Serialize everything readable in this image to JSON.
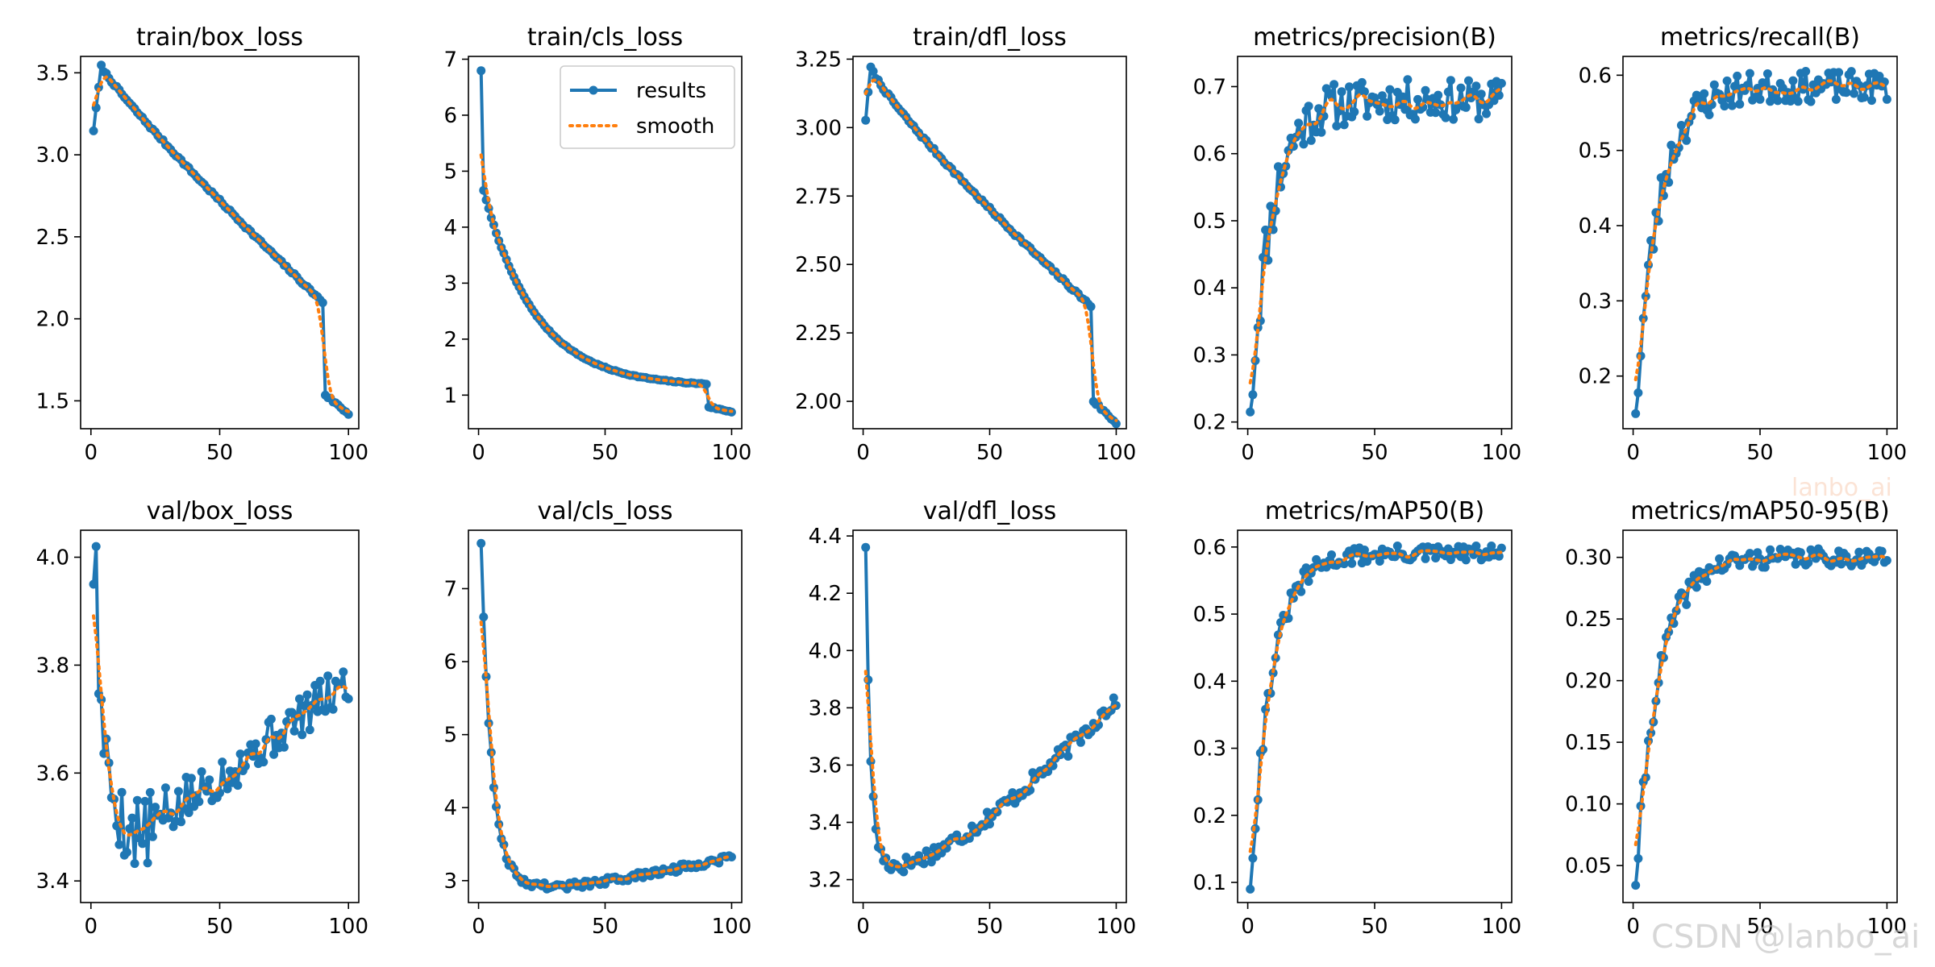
{
  "colors": {
    "results": "#1f77b4",
    "smooth": "#ff7f0e",
    "frame": "#000000"
  },
  "legend": {
    "results_label": "results",
    "smooth_label": "smooth"
  },
  "watermarks": {
    "faint": "lanbo_ai",
    "main": "CSDN @lanbo_ai"
  },
  "chart_data": [
    {
      "type": "line",
      "title": "train/box_loss",
      "xlim": [
        -4,
        104
      ],
      "ylim": [
        1.33,
        3.6
      ],
      "xticks": [
        0,
        50,
        100
      ],
      "yticks": [
        1.5,
        2.0,
        2.5,
        3.0,
        3.5
      ],
      "series": [
        {
          "name": "results",
          "x_start": 1,
          "x_end": 100,
          "generator": "decay",
          "params": {
            "start": 3.15,
            "peak": 3.54,
            "peak_x": 4,
            "end": 1.42,
            "drop_x": 90,
            "drop_to": 1.55,
            "noise": 0.008,
            "shape": 0.9
          }
        },
        {
          "name": "smooth"
        }
      ]
    },
    {
      "type": "line",
      "title": "train/cls_loss",
      "xlim": [
        -4,
        104
      ],
      "ylim": [
        0.4,
        7.05
      ],
      "xticks": [
        0,
        50,
        100
      ],
      "yticks": [
        1,
        2,
        3,
        4,
        5,
        6,
        7
      ],
      "legend": true,
      "series": [
        {
          "name": "results",
          "x_start": 1,
          "x_end": 100,
          "generator": "sharp_decay",
          "params": {
            "start": 6.8,
            "second": 4.65,
            "end": 0.7,
            "drop_x": 90,
            "noise": 0.01
          }
        },
        {
          "name": "smooth"
        }
      ]
    },
    {
      "type": "line",
      "title": "train/dfl_loss",
      "xlim": [
        -4,
        104
      ],
      "ylim": [
        1.9,
        3.26
      ],
      "xticks": [
        0,
        50,
        100
      ],
      "yticks": [
        2.0,
        2.25,
        2.5,
        2.75,
        3.0,
        3.25
      ],
      "series": [
        {
          "name": "results",
          "x_start": 1,
          "x_end": 100,
          "generator": "decay",
          "params": {
            "start": 3.03,
            "peak": 3.22,
            "peak_x": 3,
            "end": 1.92,
            "drop_x": 90,
            "drop_to": 2.01,
            "noise": 0.006,
            "shape": 0.85
          }
        },
        {
          "name": "smooth"
        }
      ]
    },
    {
      "type": "line",
      "title": "metrics/precision(B)",
      "xlim": [
        -4,
        104
      ],
      "ylim": [
        0.19,
        0.745
      ],
      "xticks": [
        0,
        50,
        100
      ],
      "yticks": [
        0.2,
        0.3,
        0.4,
        0.5,
        0.6,
        0.7
      ],
      "series": [
        {
          "name": "results",
          "x_start": 1,
          "x_end": 100,
          "generator": "rise",
          "params": {
            "start": 0.215,
            "plateau": 0.68,
            "rate": 0.12,
            "noise": 0.03,
            "seed": 11,
            "end_trend": 0.0
          }
        },
        {
          "name": "smooth"
        }
      ]
    },
    {
      "type": "line",
      "title": "metrics/recall(B)",
      "xlim": [
        -4,
        104
      ],
      "ylim": [
        0.13,
        0.625
      ],
      "xticks": [
        0,
        50,
        100
      ],
      "yticks": [
        0.2,
        0.3,
        0.4,
        0.5,
        0.6
      ],
      "series": [
        {
          "name": "results",
          "x_start": 1,
          "x_end": 100,
          "generator": "rise",
          "params": {
            "start": 0.15,
            "plateau": 0.585,
            "rate": 0.11,
            "noise": 0.02,
            "seed": 23,
            "end_trend": 0.0
          }
        },
        {
          "name": "smooth"
        }
      ]
    },
    {
      "type": "line",
      "title": "val/box_loss",
      "xlim": [
        -4,
        104
      ],
      "ylim": [
        3.36,
        4.05
      ],
      "xticks": [
        0,
        50,
        100
      ],
      "yticks": [
        3.4,
        3.6,
        3.8,
        4.0
      ],
      "series": [
        {
          "name": "results",
          "x_start": 1,
          "x_end": 100,
          "generator": "valley",
          "params": {
            "start": 3.95,
            "peak": 4.02,
            "min": 3.48,
            "min_x": 18,
            "end": 3.77,
            "noise": 0.04,
            "seed": 5
          }
        },
        {
          "name": "smooth"
        }
      ]
    },
    {
      "type": "line",
      "title": "val/cls_loss",
      "xlim": [
        -4,
        104
      ],
      "ylim": [
        2.7,
        7.8
      ],
      "xticks": [
        0,
        50,
        100
      ],
      "yticks": [
        3,
        4,
        5,
        6,
        7
      ],
      "series": [
        {
          "name": "results",
          "x_start": 1,
          "x_end": 100,
          "generator": "valley",
          "params": {
            "start": 7.62,
            "peak": 7.62,
            "min": 2.92,
            "min_x": 30,
            "end": 3.33,
            "noise": 0.05,
            "seed": 9,
            "sharp": true
          }
        },
        {
          "name": "smooth"
        }
      ]
    },
    {
      "type": "line",
      "title": "val/dfl_loss",
      "xlim": [
        -4,
        104
      ],
      "ylim": [
        3.12,
        4.42
      ],
      "xticks": [
        0,
        50,
        100
      ],
      "yticks": [
        3.2,
        3.4,
        3.6,
        3.8,
        4.0,
        4.2,
        4.4
      ],
      "series": [
        {
          "name": "results",
          "x_start": 1,
          "x_end": 100,
          "generator": "valley",
          "params": {
            "start": 4.36,
            "peak": 4.36,
            "min": 3.25,
            "min_x": 14,
            "end": 3.83,
            "noise": 0.03,
            "seed": 17,
            "sharp": true
          }
        },
        {
          "name": "smooth"
        }
      ]
    },
    {
      "type": "line",
      "title": "metrics/mAP50(B)",
      "xlim": [
        -4,
        104
      ],
      "ylim": [
        0.07,
        0.625
      ],
      "xticks": [
        0,
        50,
        100
      ],
      "yticks": [
        0.1,
        0.2,
        0.3,
        0.4,
        0.5,
        0.6
      ],
      "series": [
        {
          "name": "results",
          "x_start": 1,
          "x_end": 100,
          "generator": "rise",
          "params": {
            "start": 0.09,
            "plateau": 0.59,
            "rate": 0.12,
            "noise": 0.012,
            "seed": 31,
            "end_trend": 0.0
          }
        },
        {
          "name": "smooth"
        }
      ]
    },
    {
      "type": "line",
      "title": "metrics/mAP50-95(B)",
      "xlim": [
        -4,
        104
      ],
      "ylim": [
        0.02,
        0.322
      ],
      "xticks": [
        0,
        50,
        100
      ],
      "yticks": [
        0.05,
        0.1,
        0.15,
        0.2,
        0.25,
        0.3
      ],
      "series": [
        {
          "name": "results",
          "x_start": 1,
          "x_end": 100,
          "generator": "rise",
          "params": {
            "start": 0.034,
            "plateau": 0.3,
            "rate": 0.11,
            "noise": 0.007,
            "seed": 41,
            "end_trend": 0.0
          }
        },
        {
          "name": "smooth"
        }
      ]
    }
  ]
}
